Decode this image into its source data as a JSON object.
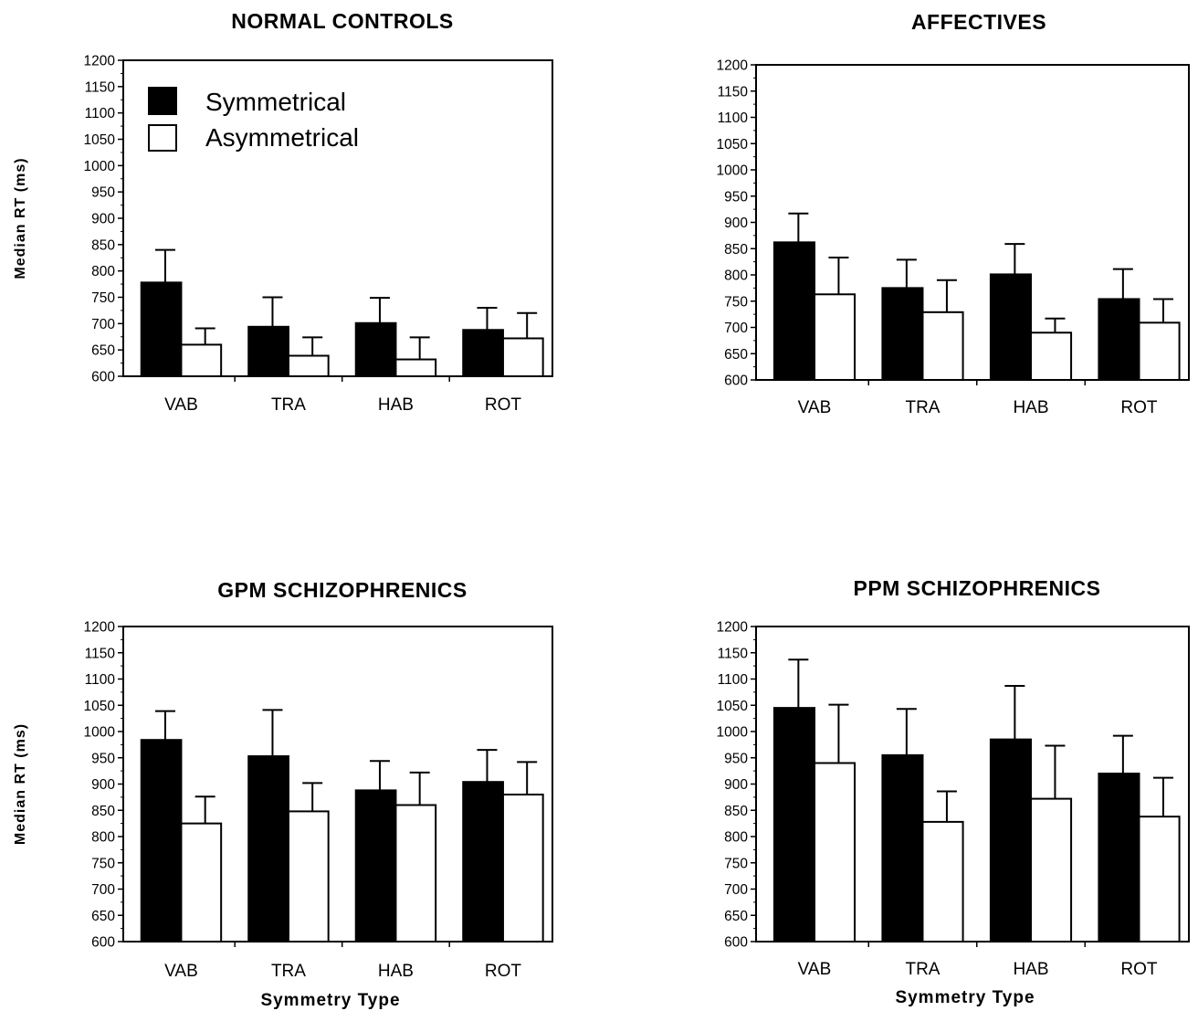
{
  "legend": {
    "symmetrical": "Symmetrical",
    "asymmetrical": "Asymmetrical"
  },
  "colors": {
    "symmetrical": "#000000",
    "asymmetrical": "#ffffff"
  },
  "chart_data": [
    {
      "type": "bar",
      "title": "NORMAL CONTROLS",
      "ylabel": "Median RT (ms)",
      "xlabel": "",
      "ylim": [
        600,
        1200
      ],
      "yticks": [
        "600",
        "650",
        "700",
        "750",
        "800",
        "850",
        "900",
        "950",
        "1000",
        "1050",
        "1100",
        "1150",
        "1200"
      ],
      "categories": [
        "VAB",
        "TRA",
        "HAB",
        "ROT"
      ],
      "series": [
        {
          "name": "Symmetrical",
          "values": [
            778,
            694,
            701,
            688
          ],
          "errors": [
            62,
            56,
            48,
            42
          ]
        },
        {
          "name": "Asymmetrical",
          "values": [
            660,
            639,
            632,
            672
          ],
          "errors": [
            31,
            35,
            42,
            48
          ]
        }
      ]
    },
    {
      "type": "bar",
      "title": "AFFECTIVES",
      "ylabel": "",
      "xlabel": "",
      "ylim": [
        600,
        1200
      ],
      "yticks": [
        "600",
        "650",
        "700",
        "750",
        "800",
        "850",
        "900",
        "950",
        "1000",
        "1050",
        "1100",
        "1150",
        "1200"
      ],
      "categories": [
        "VAB",
        "TRA",
        "HAB",
        "ROT"
      ],
      "series": [
        {
          "name": "Symmetrical",
          "values": [
            862,
            775,
            801,
            754
          ],
          "errors": [
            55,
            54,
            58,
            57
          ]
        },
        {
          "name": "Asymmetrical",
          "values": [
            763,
            729,
            690,
            709
          ],
          "errors": [
            70,
            61,
            27,
            45
          ]
        }
      ]
    },
    {
      "type": "bar",
      "title": "GPM SCHIZOPHRENICS",
      "ylabel": "Median RT (ms)",
      "xlabel": "Symmetry Type",
      "ylim": [
        600,
        1200
      ],
      "yticks": [
        "600",
        "650",
        "700",
        "750",
        "800",
        "850",
        "900",
        "950",
        "1000",
        "1050",
        "1100",
        "1150",
        "1200"
      ],
      "categories": [
        "VAB",
        "TRA",
        "HAB",
        "ROT"
      ],
      "series": [
        {
          "name": "Symmetrical",
          "values": [
            984,
            953,
            888,
            904
          ],
          "errors": [
            55,
            88,
            56,
            61
          ]
        },
        {
          "name": "Asymmetrical",
          "values": [
            825,
            848,
            860,
            880
          ],
          "errors": [
            51,
            54,
            62,
            62
          ]
        }
      ]
    },
    {
      "type": "bar",
      "title": "PPM SCHIZOPHRENICS",
      "ylabel": "",
      "xlabel": "Symmetry Type",
      "ylim": [
        600,
        1200
      ],
      "yticks": [
        "600",
        "650",
        "700",
        "750",
        "800",
        "850",
        "900",
        "950",
        "1000",
        "1050",
        "1100",
        "1150",
        "1200"
      ],
      "categories": [
        "VAB",
        "TRA",
        "HAB",
        "ROT"
      ],
      "series": [
        {
          "name": "Symmetrical",
          "values": [
            1045,
            955,
            985,
            920
          ],
          "errors": [
            92,
            88,
            102,
            72
          ]
        },
        {
          "name": "Asymmetrical",
          "values": [
            940,
            828,
            872,
            838
          ],
          "errors": [
            111,
            58,
            101,
            74
          ]
        }
      ]
    }
  ]
}
